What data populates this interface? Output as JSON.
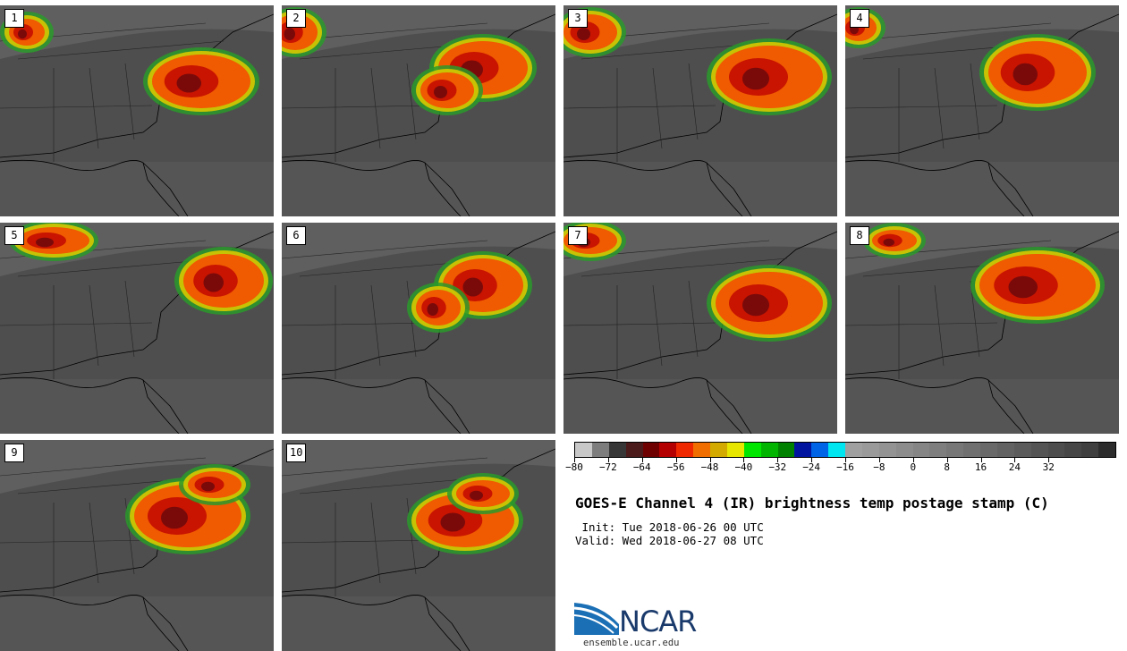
{
  "panels": [
    {
      "label": "1"
    },
    {
      "label": "2"
    },
    {
      "label": "3"
    },
    {
      "label": "4"
    },
    {
      "label": "5"
    },
    {
      "label": "6"
    },
    {
      "label": "7"
    },
    {
      "label": "8"
    },
    {
      "label": "9"
    },
    {
      "label": "10"
    }
  ],
  "colorbar": {
    "colors": [
      "#c8c8c8",
      "#7d7d7d",
      "#373737",
      "#4b1a1a",
      "#6e0000",
      "#b40000",
      "#f02800",
      "#f06e00",
      "#d2aa00",
      "#e6e600",
      "#00e600",
      "#00b400",
      "#008200",
      "#0014a0",
      "#0064e6",
      "#00e6f0",
      "#a0a0a0",
      "#9a9a9a",
      "#939393",
      "#8c8c8c",
      "#858585",
      "#7e7e7e",
      "#777777",
      "#707070",
      "#696969",
      "#626262",
      "#5b5b5b",
      "#545454",
      "#4d4d4d",
      "#464646",
      "#3f3f3f",
      "#2c2c2c"
    ],
    "tick_labels": [
      "−80",
      "−72",
      "−64",
      "−56",
      "−48",
      "−40",
      "−32",
      "−24",
      "−16",
      "−8",
      "0",
      "8",
      "16",
      "24",
      "32"
    ],
    "min": -80,
    "max": 48
  },
  "title": "GOES-E Channel 4 (IR) brightness temp postage stamp (C)",
  "init": " Init: Tue 2018-06-26 00 UTC",
  "valid": "Valid: Wed 2018-06-27 08 UTC",
  "logo": {
    "text": "NCAR",
    "url": "ensemble.ucar.edu"
  }
}
